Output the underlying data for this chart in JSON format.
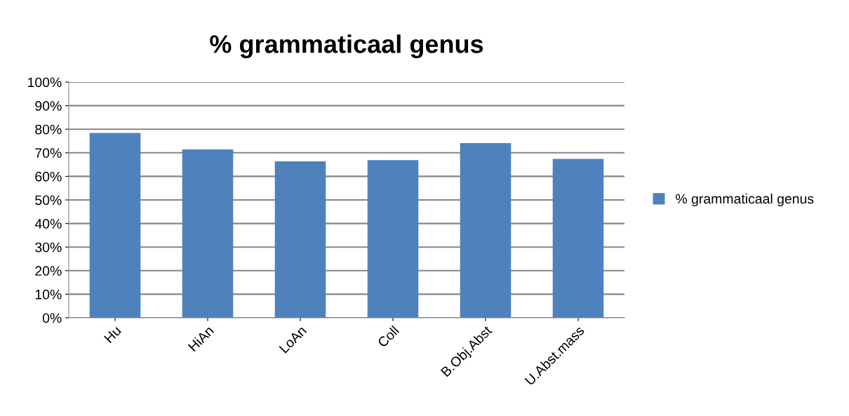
{
  "chart_data": {
    "type": "bar",
    "title": "% grammaticaal genus",
    "categories": [
      "Hu",
      "HiAn",
      "LoAn",
      "Coll",
      "B.Obj.Abst",
      "U.Abst.mass"
    ],
    "series": [
      {
        "name": "% grammaticaal genus",
        "color": "#4f81bd",
        "values": [
          78.4,
          71.4,
          66.4,
          66.9,
          74.1,
          67.4
        ]
      }
    ],
    "ylim": [
      0,
      100
    ],
    "yticks": [
      {
        "value": 0,
        "label": "0%"
      },
      {
        "value": 10,
        "label": "10%"
      },
      {
        "value": 20,
        "label": "20%"
      },
      {
        "value": 30,
        "label": "30%"
      },
      {
        "value": 40,
        "label": "40%"
      },
      {
        "value": 50,
        "label": "50%"
      },
      {
        "value": 60,
        "label": "60%"
      },
      {
        "value": 70,
        "label": "70%"
      },
      {
        "value": 80,
        "label": "80%"
      },
      {
        "value": 90,
        "label": "90%"
      },
      {
        "value": 100,
        "label": "100%"
      }
    ],
    "grid": "y",
    "legend": "right"
  }
}
